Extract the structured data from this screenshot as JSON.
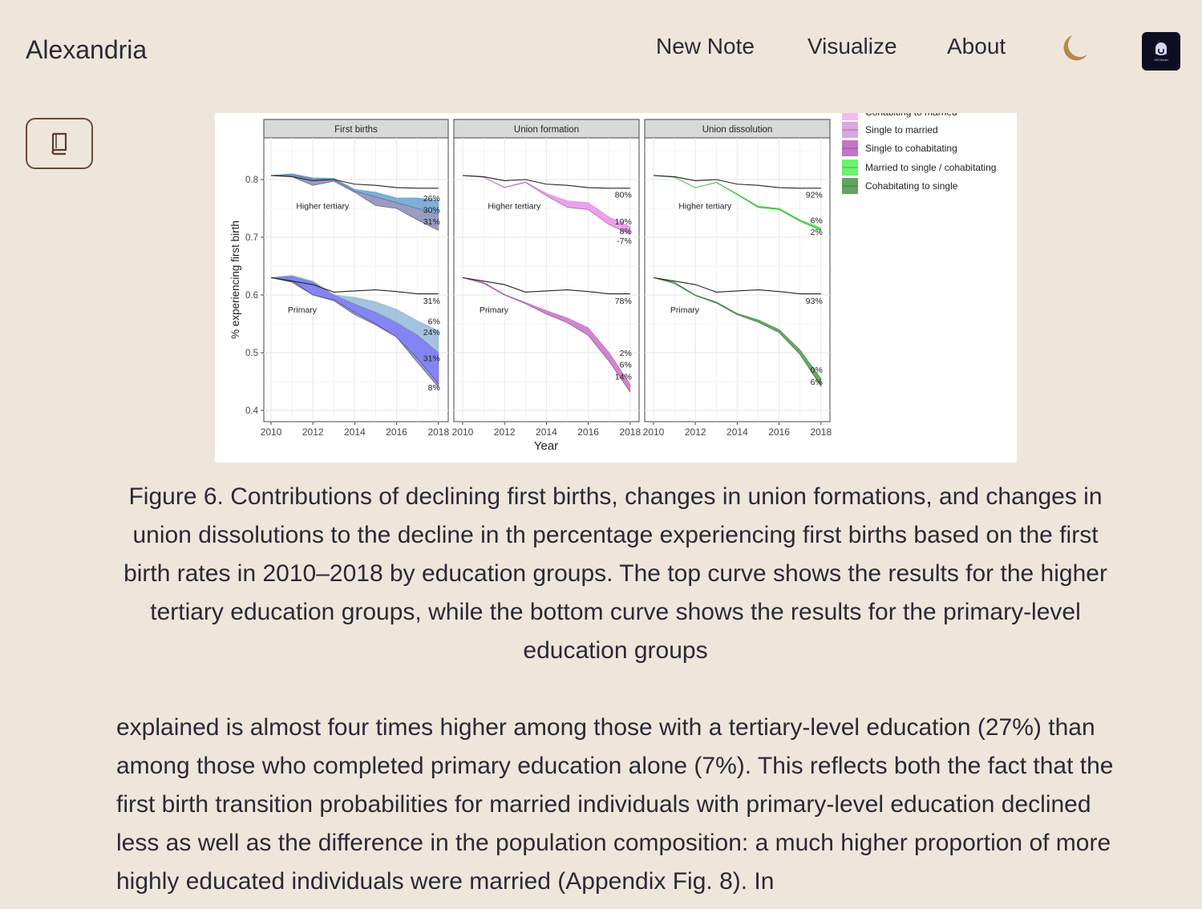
{
  "header": {
    "brand": "Alexandria",
    "nav": [
      "New Note",
      "Visualize",
      "About"
    ],
    "theme_icon": "moon-icon",
    "avatar_icon": "gitcitadel-logo",
    "avatar_text": "GitCitadel",
    "moon_color": "#b5874f"
  },
  "sidebar": {
    "toggle_icon": "book-icon"
  },
  "figure": {
    "ylabel": "% experiencing first birth",
    "xlabel": "Year",
    "yticks": [
      "0.4",
      "0.5",
      "0.6",
      "0.7",
      "0.8"
    ],
    "xticks": [
      "2010",
      "2012",
      "2014",
      "2016",
      "2018"
    ],
    "years": [
      2010,
      2011,
      2012,
      2013,
      2014,
      2015,
      2016,
      2017,
      2018
    ],
    "group_labels": {
      "higher": "Higher tertiary",
      "primary": "Primary"
    },
    "baseline": {
      "higher": [
        0.807,
        0.805,
        0.798,
        0.8,
        0.792,
        0.79,
        0.786,
        0.785,
        0.785
      ],
      "primary": [
        0.63,
        0.624,
        0.618,
        0.605,
        0.607,
        0.609,
        0.606,
        0.602,
        0.602
      ]
    },
    "panels": [
      {
        "title": "First births",
        "bands": [
          {
            "color": "#8a8ab8",
            "upper": [
              0.807,
              0.808,
              0.801,
              0.8,
              0.78,
              0.77,
              0.76,
              0.75,
              0.74
            ],
            "lower": [
              0.807,
              0.805,
              0.79,
              0.797,
              0.778,
              0.755,
              0.75,
              0.73,
              0.712
            ]
          },
          {
            "color": "#6aa0d0",
            "upper": [
              0.807,
              0.81,
              0.803,
              0.802,
              0.783,
              0.778,
              0.768,
              0.768,
              0.764
            ],
            "lower": [
              0.807,
              0.808,
              0.801,
              0.8,
              0.78,
              0.77,
              0.76,
              0.75,
              0.74
            ]
          },
          {
            "color": "#8a8ab8",
            "upper": [
              0.63,
              0.625,
              0.6,
              0.592,
              0.57,
              0.55,
              0.527,
              0.49,
              0.446
            ],
            "lower": [
              0.63,
              0.622,
              0.6,
              0.59,
              0.566,
              0.548,
              0.527,
              0.483,
              0.44
            ]
          },
          {
            "color": "#6e6ef2",
            "upper": [
              0.63,
              0.632,
              0.622,
              0.6,
              0.584,
              0.57,
              0.552,
              0.53,
              0.5
            ],
            "lower": [
              0.63,
              0.625,
              0.6,
              0.592,
              0.57,
              0.55,
              0.527,
              0.49,
              0.446
            ]
          },
          {
            "color": "#93b8d8",
            "upper": [
              0.63,
              0.634,
              0.624,
              0.6,
              0.596,
              0.588,
              0.575,
              0.555,
              0.538
            ],
            "lower": [
              0.63,
              0.632,
              0.622,
              0.6,
              0.584,
              0.57,
              0.552,
              0.53,
              0.5
            ]
          }
        ],
        "end_labels": [
          {
            "text": "26%",
            "y": 0.768
          },
          {
            "text": "30%",
            "y": 0.748
          },
          {
            "text": "31%",
            "y": 0.728
          },
          {
            "text": "31%",
            "y": 0.59
          },
          {
            "text": "6%",
            "y": 0.555
          },
          {
            "text": "24%",
            "y": 0.536
          },
          {
            "text": "31%",
            "y": 0.491
          },
          {
            "text": "8%",
            "y": 0.44
          }
        ]
      },
      {
        "title": "Union formation",
        "bands": [
          {
            "color": "#e890e8",
            "upper": [
              0.807,
              0.804,
              0.787,
              0.796,
              0.776,
              0.763,
              0.76,
              0.735,
              0.718
            ],
            "lower": [
              0.807,
              0.804,
              0.786,
              0.795,
              0.772,
              0.752,
              0.748,
              0.722,
              0.705
            ]
          },
          {
            "color": "#c870c8",
            "upper": [
              0.63,
              0.622,
              0.601,
              0.587,
              0.573,
              0.56,
              0.543,
              0.5,
              0.445
            ],
            "lower": [
              0.63,
              0.62,
              0.6,
              0.585,
              0.567,
              0.552,
              0.53,
              0.485,
              0.432
            ]
          }
        ],
        "end_labels": [
          {
            "text": "80%",
            "y": 0.774
          },
          {
            "text": "19%",
            "y": 0.728
          },
          {
            "text": "8%",
            "y": 0.718
          },
          {
            "text": "-7%",
            "y": 0.708
          },
          {
            "text": "78%",
            "y": 0.59
          },
          {
            "text": "2%",
            "y": 0.5
          },
          {
            "text": "6%",
            "y": 0.48
          },
          {
            "text": "14%",
            "y": 0.459
          }
        ]
      },
      {
        "title": "Union dissolution",
        "bands": [
          {
            "color": "#40e040",
            "upper": [
              0.807,
              0.804,
              0.786,
              0.795,
              0.775,
              0.754,
              0.75,
              0.73,
              0.716
            ],
            "lower": [
              0.807,
              0.804,
              0.786,
              0.795,
              0.774,
              0.752,
              0.748,
              0.728,
              0.712
            ]
          },
          {
            "color": "#4f9a4f",
            "upper": [
              0.63,
              0.622,
              0.6,
              0.588,
              0.568,
              0.557,
              0.54,
              0.505,
              0.455
            ],
            "lower": [
              0.63,
              0.62,
              0.599,
              0.586,
              0.566,
              0.553,
              0.535,
              0.497,
              0.442
            ]
          }
        ],
        "end_labels": [
          {
            "text": "92%",
            "y": 0.774
          },
          {
            "text": "6%",
            "y": 0.73
          },
          {
            "text": "2%",
            "y": 0.71
          },
          {
            "text": "93%",
            "y": 0.59
          },
          {
            "text": "0%",
            "y": 0.471
          },
          {
            "text": "6%",
            "y": 0.45
          }
        ]
      }
    ],
    "legend": [
      {
        "label": "Cohabiting to married",
        "color": "#f9b8f5"
      },
      {
        "label": "Single to married",
        "color": "#dba6e3"
      },
      {
        "label": "Single to cohabitating",
        "color": "#c276c6"
      },
      {
        "label": "Married to single / cohabitating",
        "color": "#6cf26c"
      },
      {
        "label": "Cohabitating to single",
        "color": "#62a462"
      }
    ]
  },
  "caption": "Figure 6. Contributions of declining first births, changes in union formations, and changes in union dissolutions to the decline in th percentage experiencing first births based on the first birth rates in 2010–2018 by education groups. The top curve shows the results for the higher tertiary education groups, while the bottom curve shows the results for the primary-level education groups",
  "body": "explained is almost four times higher among those with a tertiary-level education (27%) than among those who completed primary education alone (7%). This reflects both the fact that the first birth transition probabilities for married individuals with primary-level education declined less as well as the difference in the population composition: a much higher proportion of more highly educated individuals were married (Appendix Fig. 8). In"
}
